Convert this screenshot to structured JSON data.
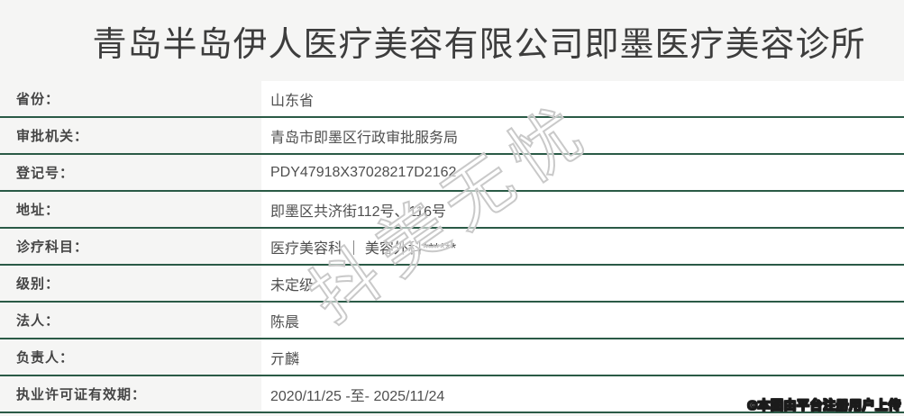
{
  "title": "青岛半岛伊人医疗美容有限公司即墨医疗美容诊所",
  "table": {
    "rows": [
      {
        "label": "省份：",
        "value": "山东省"
      },
      {
        "label": "审批机关：",
        "value": "青岛市即墨区行政审批服务局"
      },
      {
        "label": "登记号：",
        "value": "PDY47918X37028217D2162"
      },
      {
        "label": "地址：",
        "value": "即墨区共济街112号、116号"
      },
      {
        "label": "诊疗科目：",
        "value": "医疗美容科 ｜ 美容外科******"
      },
      {
        "label": "级别：",
        "value": "未定级"
      },
      {
        "label": "法人：",
        "value": "陈晨"
      },
      {
        "label": "负责人：",
        "value": "亓麟"
      },
      {
        "label": "执业许可证有效期：",
        "value": "2020/11/25 -至- 2025/11/24"
      }
    ]
  },
  "watermark": {
    "text": "抖美无忧"
  },
  "stamp": {
    "text": "©本图由平台注册用户上传"
  },
  "colors": {
    "accent_green": "#2a5a46",
    "page_bg": "#f5f5f4",
    "value_cell_bg": "#ffffff",
    "title_text": "#3d3d3d",
    "label_text": "#454545",
    "value_text": "#4f4f4f",
    "watermark_outline": "#c9c9c9"
  }
}
